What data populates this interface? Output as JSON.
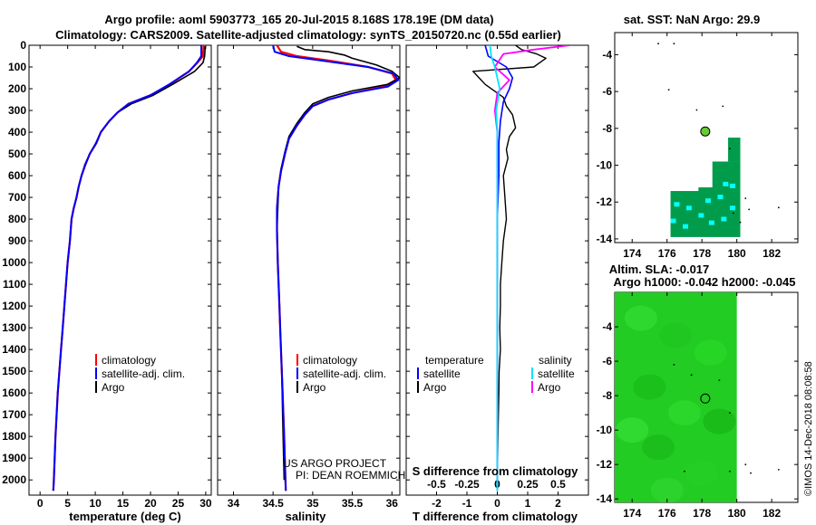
{
  "titles": {
    "line1": "Argo profile: aoml 5903773_165 20-Jul-2015 8.168S 178.19E (DM data)",
    "line2": "Climatology: CARS2009. Satellite-adjusted climatology: synTS_20150720.nc (0.55d earlier)"
  },
  "credit": {
    "line1": "US ARGO PROJECT",
    "line2": "PI: DEAN ROEMMICH"
  },
  "imos_stamp": "©IMOS 14-Dec-2018 08:08:58",
  "colors": {
    "clim": "#ff0000",
    "sat": "#0000ff",
    "argo": "#000000",
    "sal_sat": "#00e5ff",
    "sal_argo": "#ff00ff",
    "land": "#009c4c",
    "cyan": "#00ffff",
    "sla": "#22cc22"
  },
  "chart_data": [
    {
      "type": "line",
      "title": "",
      "xlabel": "temperature (deg C)",
      "ylabel": "",
      "xlim": [
        -2,
        31
      ],
      "ylim": [
        2070,
        0
      ],
      "xticks": [
        "0",
        "5",
        "10",
        "15",
        "20",
        "25",
        "30"
      ],
      "xtick_values": [
        0,
        5,
        10,
        15,
        20,
        25,
        30
      ],
      "yticks": [
        "0",
        "100",
        "200",
        "300",
        "400",
        "500",
        "600",
        "700",
        "800",
        "900",
        "1000",
        "1100",
        "1200",
        "1300",
        "1400",
        "1500",
        "1600",
        "1700",
        "1800",
        "1900",
        "2000"
      ],
      "ytick_values": [
        0,
        100,
        200,
        300,
        400,
        500,
        600,
        700,
        800,
        900,
        1000,
        1100,
        1200,
        1300,
        1400,
        1500,
        1600,
        1700,
        1800,
        1900,
        2000
      ],
      "legend": [
        "climatology",
        "satellite-adj. clim.",
        "Argo"
      ],
      "series": [
        {
          "name": "climatology",
          "x": [
            29.6,
            29.5,
            28.5,
            27,
            23.5,
            20,
            16,
            14,
            12.5,
            11,
            10.2,
            9,
            8.2,
            7.5,
            7,
            6.6,
            6.1,
            5.7,
            5.4,
            5.0,
            4.7,
            4.4,
            4.1,
            3.8,
            3.5,
            3.2,
            2.8,
            2.5,
            2.4
          ],
          "y": [
            0,
            50,
            80,
            120,
            180,
            230,
            270,
            310,
            350,
            400,
            450,
            500,
            550,
            600,
            650,
            700,
            750,
            800,
            900,
            1000,
            1100,
            1200,
            1300,
            1400,
            1500,
            1600,
            1800,
            2000,
            2050
          ]
        },
        {
          "name": "satellite-adj. clim.",
          "x": [
            29.2,
            29.2,
            28.4,
            27,
            23.4,
            20,
            16,
            14,
            12.5,
            11,
            10.2,
            9,
            8.2,
            7.5,
            7,
            6.6,
            6.1,
            5.7,
            5.4,
            5.0,
            4.7,
            4.4,
            4.1,
            3.8,
            3.5,
            3.2,
            2.8,
            2.5,
            2.4
          ],
          "y": [
            0,
            50,
            80,
            120,
            180,
            230,
            270,
            310,
            350,
            400,
            450,
            500,
            550,
            600,
            650,
            700,
            750,
            800,
            900,
            1000,
            1100,
            1200,
            1300,
            1400,
            1500,
            1600,
            1800,
            2000,
            2050
          ]
        },
        {
          "name": "Argo",
          "x": [
            29.9,
            29.8,
            29.5,
            28,
            24,
            20.5,
            16.5,
            14,
            12.5,
            11,
            10.1,
            9,
            8.1,
            7.5,
            7,
            6.6,
            6.1,
            5.7,
            5.4,
            5.0,
            4.7,
            4.4,
            4.1,
            3.8,
            3.5,
            3.2,
            2.8,
            2.5
          ],
          "y": [
            5,
            50,
            80,
            120,
            180,
            230,
            270,
            310,
            350,
            400,
            450,
            500,
            550,
            600,
            650,
            700,
            750,
            800,
            900,
            1000,
            1100,
            1200,
            1300,
            1400,
            1500,
            1600,
            1800,
            2000
          ]
        }
      ]
    },
    {
      "type": "line",
      "xlabel": "salinity",
      "xlim": [
        33.8,
        36.1
      ],
      "ylim": [
        2070,
        0
      ],
      "xticks": [
        "34",
        "34.5",
        "35",
        "35.5",
        "36"
      ],
      "xtick_values": [
        34,
        34.5,
        35,
        35.5,
        36
      ],
      "legend": [
        "climatology",
        "satellite-adj. clim.",
        "Argo"
      ],
      "series": [
        {
          "name": "climatology",
          "x": [
            34.55,
            34.6,
            34.8,
            35.2,
            35.7,
            36.0,
            36.05,
            35.9,
            35.5,
            35.2,
            35.0,
            34.9,
            34.8,
            34.7,
            34.65,
            34.6,
            34.57,
            34.55,
            34.55,
            34.56,
            34.57,
            34.58,
            34.59,
            34.6,
            34.61,
            34.62,
            34.64,
            34.66
          ],
          "y": [
            0,
            30,
            50,
            70,
            100,
            130,
            160,
            190,
            220,
            250,
            280,
            320,
            370,
            430,
            500,
            580,
            650,
            750,
            850,
            1000,
            1100,
            1200,
            1300,
            1400,
            1500,
            1600,
            1800,
            2050
          ]
        },
        {
          "name": "satellite-adj. clim.",
          "x": [
            34.5,
            34.52,
            34.7,
            35.1,
            35.7,
            36.02,
            36.08,
            35.95,
            35.5,
            35.2,
            35.0,
            34.9,
            34.8,
            34.7,
            34.65,
            34.6,
            34.57,
            34.55,
            34.55,
            34.56,
            34.57,
            34.58,
            34.59,
            34.6,
            34.61,
            34.62,
            34.64,
            34.66
          ],
          "y": [
            0,
            30,
            50,
            70,
            100,
            130,
            160,
            190,
            220,
            250,
            280,
            320,
            370,
            430,
            500,
            580,
            650,
            750,
            850,
            1000,
            1100,
            1200,
            1300,
            1400,
            1500,
            1600,
            1800,
            2050
          ]
        },
        {
          "name": "Argo",
          "x": [
            34.8,
            34.9,
            35.2,
            35.4,
            35.5,
            35.8,
            36.0,
            36.1,
            35.95,
            35.5,
            35.2,
            35.0,
            34.9,
            34.8,
            34.7,
            34.65,
            34.6,
            34.57,
            34.56,
            34.55,
            34.56,
            34.57,
            34.58,
            34.59,
            34.6,
            34.61,
            34.62,
            34.64
          ],
          "y": [
            5,
            20,
            30,
            45,
            60,
            90,
            120,
            150,
            180,
            210,
            240,
            270,
            310,
            360,
            420,
            490,
            570,
            650,
            750,
            850,
            1000,
            1100,
            1200,
            1300,
            1400,
            1500,
            1700,
            2000
          ]
        }
      ]
    },
    {
      "type": "line",
      "xlabel": "T difference from climatology",
      "top_axis_label": "S difference from climatology",
      "xlim": [
        -3,
        3
      ],
      "ylim": [
        2070,
        0
      ],
      "xticks": [
        "-2",
        "-1",
        "0",
        "1",
        "2"
      ],
      "xtick_values": [
        -2,
        -1,
        0,
        1,
        2
      ],
      "s_ticks": [
        "-0.5",
        "-0.25",
        "0",
        "0.25",
        "0.5"
      ],
      "s_tick_values": [
        -0.5,
        -0.25,
        0,
        0.25,
        0.5
      ],
      "legend_temperature_heading": "temperature",
      "legend_salinity_heading": "salinity",
      "legend_t": [
        "satellite",
        "Argo"
      ],
      "legend_s": [
        "satellite",
        "Argo"
      ],
      "series": [
        {
          "name": "T satellite",
          "x": [
            -0.4,
            -0.3,
            0.3,
            0.5,
            0.4,
            0.2,
            0.1,
            0.05,
            0.05,
            0.0,
            0.0,
            0.0,
            0.0,
            0.0,
            0.0,
            0.0,
            0.0
          ],
          "y": [
            0,
            50,
            100,
            150,
            200,
            260,
            350,
            450,
            600,
            800,
            1000,
            1200,
            1400,
            1600,
            1800,
            2000,
            2050
          ]
        },
        {
          "name": "T Argo",
          "x": [
            0.6,
            0.8,
            1.3,
            1.6,
            1.4,
            1.2,
            -0.8,
            -0.6,
            -0.4,
            0.2,
            0.3,
            0.5,
            0.6,
            0.4,
            0.3,
            0.35,
            0.2,
            0.25,
            0.3,
            0.2,
            0.15,
            0.1,
            0.1,
            0.08,
            0.1,
            0.06,
            0.05,
            0.02,
            0.0
          ],
          "y": [
            0,
            20,
            40,
            60,
            80,
            100,
            120,
            150,
            180,
            240,
            280,
            320,
            380,
            420,
            480,
            520,
            600,
            700,
            800,
            900,
            1000,
            1100,
            1200,
            1300,
            1400,
            1500,
            1600,
            1800,
            2000
          ]
        },
        {
          "name": "S satellite",
          "x": [
            -0.06,
            -0.05,
            -0.02,
            0.0,
            0.02,
            -0.01,
            0.0,
            0.0,
            0.0,
            0.0,
            0.0,
            0.0,
            0.0,
            0.0,
            0.0,
            0.0
          ],
          "y": [
            0,
            50,
            100,
            150,
            200,
            300,
            400,
            500,
            600,
            800,
            1000,
            1200,
            1400,
            1600,
            1800,
            2050
          ]
        },
        {
          "name": "S Argo",
          "x": [
            0.6,
            0.3,
            0.05,
            -0.02,
            0.1,
            0.0,
            -0.02,
            0.0,
            0.0,
            0.0,
            0.0,
            0.0,
            0.0
          ],
          "y": [
            0,
            20,
            40,
            100,
            160,
            220,
            300,
            400,
            600,
            1000,
            1400,
            1800,
            2000
          ]
        }
      ]
    },
    {
      "type": "map",
      "title": "sat. SST: NaN Argo: 29.9",
      "xlim": [
        173,
        183.5
      ],
      "ylim": [
        -14.2,
        -2.8
      ],
      "xticks": [
        "174",
        "176",
        "178",
        "180",
        "182"
      ],
      "xtick_values": [
        174,
        176,
        178,
        180,
        182
      ],
      "yticks": [
        "-4",
        "-6",
        "-8",
        "-10",
        "-12",
        "-14"
      ],
      "ytick_values": [
        -4,
        -6,
        -8,
        -10,
        -12,
        -14
      ],
      "argo_location": [
        178.19,
        -8.168
      ]
    },
    {
      "type": "map",
      "title_line1": "Altim. SLA: -0.017",
      "title_line2": "Argo h1000: -0.042 h2000: -0.045",
      "xlim": [
        173,
        183.5
      ],
      "ylim": [
        -14.2,
        -2.0
      ],
      "xticks": [
        "174",
        "176",
        "178",
        "180",
        "182"
      ],
      "xtick_values": [
        174,
        176,
        178,
        180,
        182
      ],
      "yticks": [
        "-4",
        "-6",
        "-8",
        "-10",
        "-12",
        "-14"
      ],
      "ytick_values": [
        -4,
        -6,
        -8,
        -10,
        -12,
        -14
      ],
      "argo_location": [
        178.19,
        -8.168
      ],
      "field_lon_range": [
        173,
        180
      ]
    }
  ]
}
